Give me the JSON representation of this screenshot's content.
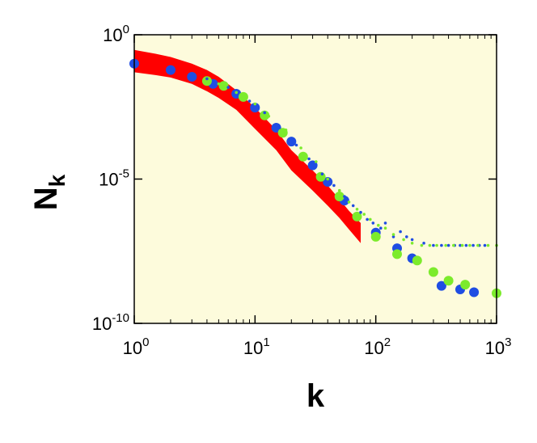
{
  "chart_data": {
    "type": "scatter",
    "title": "",
    "xlabel": "k",
    "ylabel_main": "N",
    "ylabel_sub": "k",
    "x_scale": "log",
    "y_scale": "log",
    "xlim": [
      1,
      1000
    ],
    "ylim": [
      1e-10,
      1
    ],
    "plot_background": "#fdfbdc",
    "grid": false,
    "x_ticks": [
      {
        "value": 1,
        "base": "10",
        "exp": "0"
      },
      {
        "value": 10,
        "base": "10",
        "exp": "1"
      },
      {
        "value": 100,
        "base": "10",
        "exp": "2"
      },
      {
        "value": 1000,
        "base": "10",
        "exp": "3"
      }
    ],
    "y_ticks": [
      {
        "value": 1,
        "base": "10",
        "exp": "0"
      },
      {
        "value": 1e-05,
        "base": "10",
        "exp": "-5"
      },
      {
        "value": 1e-10,
        "base": "10",
        "exp": "-10"
      }
    ],
    "series": [
      {
        "type": "band",
        "color": "#ff0000",
        "x": [
          1,
          1.5,
          2,
          3,
          4,
          5,
          7,
          10,
          15,
          20,
          30,
          40,
          50,
          60,
          75
        ],
        "upper": [
          0.3,
          0.22,
          0.17,
          0.1,
          0.06,
          0.035,
          0.012,
          0.003,
          0.0005,
          0.0001,
          2e-05,
          6e-06,
          2e-06,
          8e-07,
          3e-07
        ],
        "lower": [
          0.05,
          0.04,
          0.033,
          0.02,
          0.011,
          0.0065,
          0.0025,
          0.00055,
          0.0001,
          2e-05,
          4e-06,
          1.2e-06,
          4.5e-07,
          1.8e-07,
          6e-08
        ]
      },
      {
        "type": "scatter",
        "color": "#1f4de3",
        "marker_size": "large",
        "points": [
          [
            1,
            0.1
          ],
          [
            2,
            0.06
          ],
          [
            3,
            0.035
          ],
          [
            4.5,
            0.02
          ],
          [
            7,
            0.009
          ],
          [
            10,
            0.003
          ],
          [
            15,
            0.0006
          ],
          [
            20,
            0.0002
          ],
          [
            30,
            3e-05
          ],
          [
            40,
            8e-06
          ],
          [
            55,
            1.8e-06
          ],
          [
            100,
            1.4e-07
          ],
          [
            150,
            4e-08
          ],
          [
            200,
            1.8e-08
          ],
          [
            350,
            2e-09
          ],
          [
            500,
            1.5e-09
          ],
          [
            650,
            1.2e-09
          ]
        ]
      },
      {
        "type": "scatter",
        "color": "#7ceb2c",
        "marker_size": "large",
        "points": [
          [
            4,
            0.025
          ],
          [
            5.5,
            0.017
          ],
          [
            8,
            0.007
          ],
          [
            12,
            0.0016
          ],
          [
            17,
            0.0004
          ],
          [
            25,
            6e-05
          ],
          [
            35,
            1.2e-05
          ],
          [
            50,
            2.5e-06
          ],
          [
            70,
            5e-07
          ],
          [
            100,
            1e-07
          ],
          [
            150,
            2.5e-08
          ],
          [
            220,
            1.5e-08
          ],
          [
            300,
            6e-09
          ],
          [
            400,
            3e-09
          ],
          [
            550,
            2.2e-09
          ],
          [
            1000,
            1.1e-09
          ]
        ]
      },
      {
        "type": "scatter",
        "color": "#1f4de3",
        "marker_size": "small",
        "points": [
          [
            4,
            0.03
          ],
          [
            6,
            0.015
          ],
          [
            9,
            0.005
          ],
          [
            12,
            0.002
          ],
          [
            16,
            0.0006
          ],
          [
            22,
            0.00015
          ],
          [
            28,
            5e-05
          ],
          [
            36,
            1.5e-05
          ],
          [
            45,
            6e-06
          ],
          [
            55,
            2.5e-06
          ],
          [
            65,
            1.2e-06
          ],
          [
            75,
            7e-07
          ],
          [
            85,
            4e-07
          ],
          [
            95,
            3e-07
          ],
          [
            110,
            2e-07
          ],
          [
            120,
            3e-07
          ],
          [
            140,
            1e-07
          ],
          [
            160,
            1.5e-07
          ],
          [
            180,
            1e-07
          ],
          [
            200,
            8e-08
          ],
          [
            250,
            6e-08
          ],
          [
            300,
            5e-08
          ],
          [
            350,
            5e-08
          ],
          [
            400,
            5e-08
          ],
          [
            450,
            5e-08
          ],
          [
            500,
            5e-08
          ],
          [
            560,
            5e-08
          ],
          [
            640,
            5e-08
          ],
          [
            720,
            5e-08
          ],
          [
            800,
            5e-08
          ]
        ]
      },
      {
        "type": "scatter",
        "color": "#7ceb2c",
        "marker_size": "small",
        "points": [
          [
            5,
            0.02
          ],
          [
            7,
            0.01
          ],
          [
            10,
            0.004
          ],
          [
            13,
            0.0015
          ],
          [
            18,
            0.0005
          ],
          [
            24,
            0.00012
          ],
          [
            32,
            4e-05
          ],
          [
            40,
            1e-05
          ],
          [
            50,
            4e-06
          ],
          [
            60,
            1.6e-06
          ],
          [
            70,
            9e-07
          ],
          [
            80,
            6e-07
          ],
          [
            90,
            4e-07
          ],
          [
            105,
            2.5e-07
          ],
          [
            120,
            2e-07
          ],
          [
            140,
            1.2e-07
          ],
          [
            170,
            8e-08
          ],
          [
            200,
            6e-08
          ],
          [
            240,
            5e-08
          ],
          [
            280,
            5e-08
          ],
          [
            320,
            5e-08
          ],
          [
            380,
            5e-08
          ],
          [
            440,
            5e-08
          ],
          [
            520,
            5e-08
          ],
          [
            600,
            5e-08
          ],
          [
            700,
            5e-08
          ],
          [
            850,
            5e-08
          ],
          [
            1000,
            5e-08
          ]
        ]
      }
    ]
  }
}
